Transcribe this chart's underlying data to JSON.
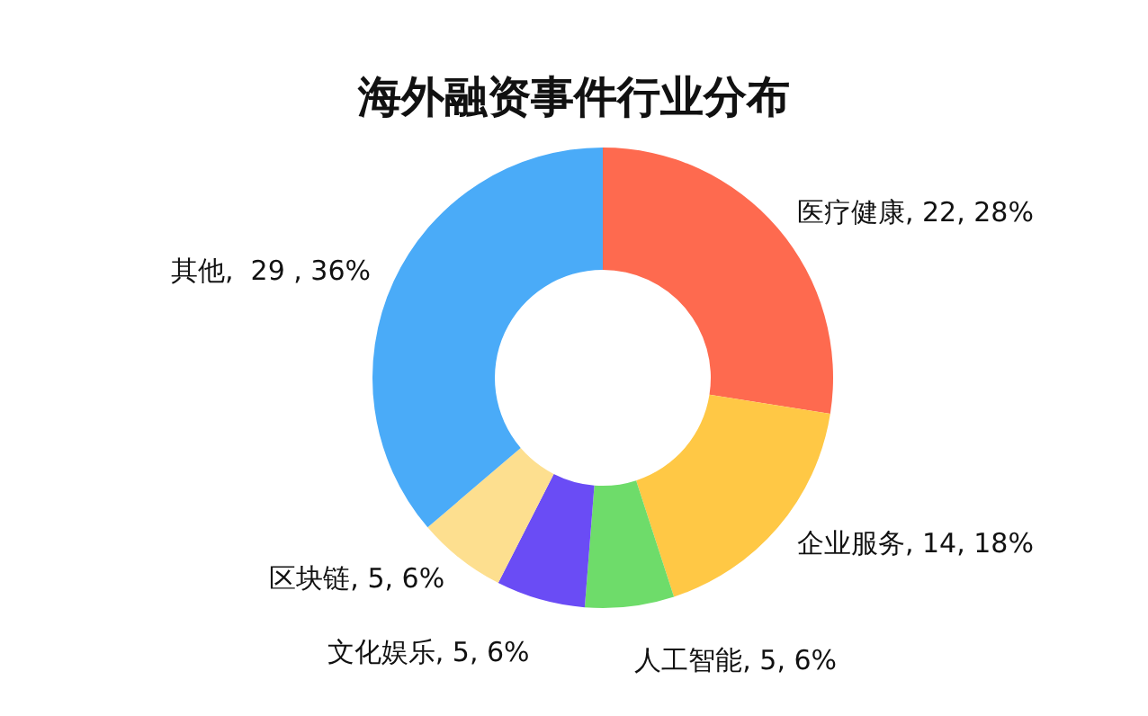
{
  "chart_data": {
    "type": "donut",
    "title": "海外融资事件行业分布",
    "categories": [
      "医疗健康",
      "企业服务",
      "人工智能",
      "文化娱乐",
      "区块链",
      "其他"
    ],
    "values": [
      22,
      14,
      5,
      5,
      5,
      29
    ],
    "colors": [
      "#fe6a4f",
      "#ffc845",
      "#6edc6a",
      "#6a4cf5",
      "#fddf8f",
      "#4aabf8"
    ],
    "value_labels": [
      ", 22, 28%",
      ", 14, 18%",
      ", 5, 6%",
      ", 5, 6%",
      ", 5, 6%",
      ",  29 , 36%"
    ]
  }
}
